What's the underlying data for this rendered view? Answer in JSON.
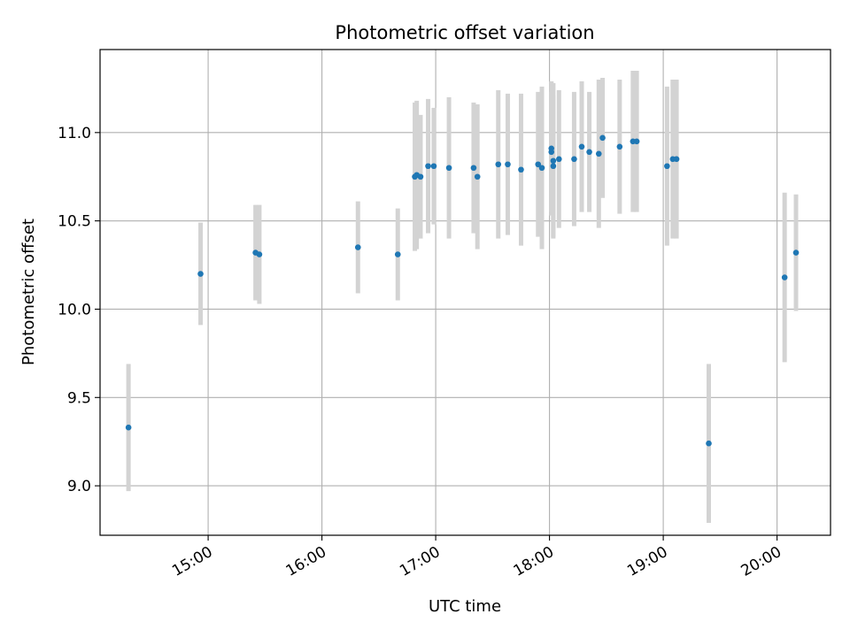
{
  "chart_data": {
    "type": "scatter",
    "title": "Photometric offset variation",
    "xlabel": "UTC time",
    "ylabel": "Photometric offset",
    "x_tick_labels": [
      "15:00",
      "16:00",
      "17:00",
      "18:00",
      "19:00",
      "20:00"
    ],
    "x_tick_hours": [
      15,
      16,
      17,
      18,
      19,
      20
    ],
    "y_ticks": [
      9.0,
      9.5,
      10.0,
      10.5,
      11.0
    ],
    "y_tick_labels": [
      "9.0",
      "9.5",
      "10.0",
      "10.5",
      "11.0"
    ],
    "xlim_hours": [
      14.05,
      20.47
    ],
    "ylim": [
      8.72,
      11.47
    ],
    "grid": true,
    "marker_color": "#1f77b4",
    "errorbar_color": "#d3d3d3",
    "points": [
      {
        "t": "14:18",
        "y": 9.33,
        "err": 0.36
      },
      {
        "t": "14:56",
        "y": 10.2,
        "err": 0.29
      },
      {
        "t": "15:25",
        "y": 10.32,
        "err": 0.27
      },
      {
        "t": "15:27",
        "y": 10.31,
        "err": 0.28
      },
      {
        "t": "16:19",
        "y": 10.35,
        "err": 0.26
      },
      {
        "t": "16:40",
        "y": 10.31,
        "err": 0.26
      },
      {
        "t": "16:49",
        "y": 10.75,
        "err": 0.42
      },
      {
        "t": "16:50",
        "y": 10.76,
        "err": 0.42
      },
      {
        "t": "16:52",
        "y": 10.75,
        "err": 0.35
      },
      {
        "t": "16:56",
        "y": 10.81,
        "err": 0.38
      },
      {
        "t": "16:59",
        "y": 10.81,
        "err": 0.33
      },
      {
        "t": "17:07",
        "y": 10.8,
        "err": 0.4
      },
      {
        "t": "17:20",
        "y": 10.8,
        "err": 0.37
      },
      {
        "t": "17:22",
        "y": 10.75,
        "err": 0.41
      },
      {
        "t": "17:33",
        "y": 10.82,
        "err": 0.42
      },
      {
        "t": "17:38",
        "y": 10.82,
        "err": 0.4
      },
      {
        "t": "17:45",
        "y": 10.79,
        "err": 0.43
      },
      {
        "t": "17:54",
        "y": 10.82,
        "err": 0.41
      },
      {
        "t": "17:56",
        "y": 10.8,
        "err": 0.46
      },
      {
        "t": "18:01",
        "y": 10.91,
        "err": 0.38
      },
      {
        "t": "18:01",
        "y": 10.89,
        "err": 0.34
      },
      {
        "t": "18:02",
        "y": 10.84,
        "err": 0.44
      },
      {
        "t": "18:02",
        "y": 10.81,
        "err": 0.4
      },
      {
        "t": "18:05",
        "y": 10.85,
        "err": 0.39
      },
      {
        "t": "18:13",
        "y": 10.85,
        "err": 0.38
      },
      {
        "t": "18:17",
        "y": 10.92,
        "err": 0.37
      },
      {
        "t": "18:21",
        "y": 10.89,
        "err": 0.34
      },
      {
        "t": "18:26",
        "y": 10.88,
        "err": 0.42
      },
      {
        "t": "18:28",
        "y": 10.97,
        "err": 0.34
      },
      {
        "t": "18:37",
        "y": 10.92,
        "err": 0.38
      },
      {
        "t": "18:44",
        "y": 10.95,
        "err": 0.4
      },
      {
        "t": "18:46",
        "y": 10.95,
        "err": 0.4
      },
      {
        "t": "19:02",
        "y": 10.81,
        "err": 0.45
      },
      {
        "t": "19:05",
        "y": 10.85,
        "err": 0.45
      },
      {
        "t": "19:07",
        "y": 10.85,
        "err": 0.45
      },
      {
        "t": "19:24",
        "y": 9.24,
        "err": 0.45
      },
      {
        "t": "20:04",
        "y": 10.18,
        "err": 0.48
      },
      {
        "t": "20:10",
        "y": 10.32,
        "err": 0.33
      }
    ]
  }
}
